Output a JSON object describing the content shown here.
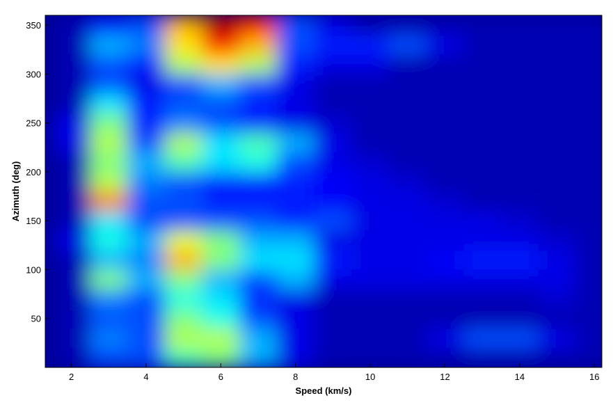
{
  "chart_data": {
    "type": "heatmap",
    "x_label": "Speed (km/s)",
    "y_label": "Azimuth (deg)",
    "x": [
      2,
      3,
      4,
      5,
      6,
      7,
      8,
      9,
      10,
      11,
      12,
      13,
      14,
      15,
      16
    ],
    "y": [
      10,
      30,
      50,
      70,
      90,
      110,
      130,
      150,
      170,
      190,
      210,
      230,
      250,
      270,
      290,
      310,
      330,
      350
    ],
    "z": [
      [
        0.05,
        0.2,
        0.2,
        0.45,
        0.5,
        0.3,
        0.1,
        0.05,
        0.05,
        0.05,
        0.05,
        0.05,
        0.05,
        0.05,
        0.05
      ],
      [
        0.05,
        0.25,
        0.2,
        0.55,
        0.55,
        0.3,
        0.1,
        0.05,
        0.05,
        0.05,
        0.1,
        0.2,
        0.2,
        0.1,
        0.05
      ],
      [
        0.05,
        0.2,
        0.2,
        0.5,
        0.4,
        0.2,
        0.1,
        0.05,
        0.05,
        0.05,
        0.05,
        0.05,
        0.05,
        0.05,
        0.05
      ],
      [
        0.05,
        0.25,
        0.2,
        0.4,
        0.35,
        0.15,
        0.1,
        0.05,
        0.05,
        0.05,
        0.05,
        0.05,
        0.05,
        0.08,
        0.05
      ],
      [
        0.05,
        0.5,
        0.3,
        0.5,
        0.3,
        0.2,
        0.3,
        0.1,
        0.1,
        0.1,
        0.1,
        0.1,
        0.1,
        0.1,
        0.05
      ],
      [
        0.05,
        0.3,
        0.25,
        0.7,
        0.5,
        0.35,
        0.35,
        0.15,
        0.1,
        0.1,
        0.12,
        0.15,
        0.15,
        0.1,
        0.05
      ],
      [
        0.1,
        0.4,
        0.3,
        0.6,
        0.5,
        0.3,
        0.3,
        0.1,
        0.1,
        0.1,
        0.1,
        0.1,
        0.1,
        0.08,
        0.05
      ],
      [
        0.05,
        0.35,
        0.2,
        0.2,
        0.2,
        0.2,
        0.15,
        0.2,
        0.1,
        0.1,
        0.1,
        0.1,
        0.08,
        0.05,
        0.05
      ],
      [
        0.05,
        0.75,
        0.2,
        0.2,
        0.15,
        0.15,
        0.15,
        0.12,
        0.1,
        0.1,
        0.08,
        0.05,
        0.05,
        0.05,
        0.05
      ],
      [
        0.05,
        0.55,
        0.25,
        0.2,
        0.15,
        0.15,
        0.15,
        0.12,
        0.1,
        0.08,
        0.05,
        0.05,
        0.05,
        0.05,
        0.05
      ],
      [
        0.05,
        0.5,
        0.3,
        0.45,
        0.35,
        0.4,
        0.2,
        0.1,
        0.08,
        0.05,
        0.05,
        0.05,
        0.05,
        0.05,
        0.05
      ],
      [
        0.1,
        0.55,
        0.2,
        0.55,
        0.35,
        0.45,
        0.3,
        0.1,
        0.05,
        0.05,
        0.05,
        0.05,
        0.05,
        0.05,
        0.05
      ],
      [
        0.1,
        0.5,
        0.15,
        0.25,
        0.2,
        0.15,
        0.1,
        0.08,
        0.05,
        0.05,
        0.05,
        0.05,
        0.05,
        0.05,
        0.05
      ],
      [
        0.05,
        0.35,
        0.15,
        0.2,
        0.2,
        0.15,
        0.1,
        0.05,
        0.05,
        0.05,
        0.05,
        0.05,
        0.05,
        0.05,
        0.05
      ],
      [
        0.05,
        0.2,
        0.1,
        0.2,
        0.3,
        0.2,
        0.1,
        0.05,
        0.05,
        0.05,
        0.05,
        0.05,
        0.05,
        0.05,
        0.05
      ],
      [
        0.05,
        0.2,
        0.15,
        0.55,
        0.65,
        0.55,
        0.15,
        0.1,
        0.1,
        0.05,
        0.05,
        0.05,
        0.05,
        0.05,
        0.05
      ],
      [
        0.05,
        0.3,
        0.25,
        0.65,
        0.85,
        0.7,
        0.2,
        0.15,
        0.15,
        0.2,
        0.1,
        0.05,
        0.05,
        0.05,
        0.05
      ],
      [
        0.05,
        0.15,
        0.2,
        0.7,
        0.95,
        0.85,
        0.2,
        0.1,
        0.05,
        0.05,
        0.05,
        0.05,
        0.05,
        0.05,
        0.05
      ]
    ],
    "xlim": [
      1.3,
      16.2
    ],
    "ylim": [
      0,
      360
    ],
    "xticks": [
      2,
      4,
      6,
      8,
      10,
      12,
      14,
      16
    ],
    "yticks": [
      50,
      100,
      150,
      200,
      250,
      300,
      350
    ]
  }
}
